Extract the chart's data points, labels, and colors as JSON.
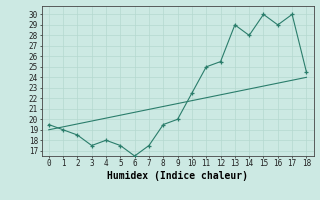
{
  "x": [
    0,
    1,
    2,
    3,
    4,
    5,
    6,
    7,
    8,
    9,
    10,
    11,
    12,
    13,
    14,
    15,
    16,
    17,
    18
  ],
  "y_data": [
    19.5,
    19.0,
    18.5,
    17.5,
    18.0,
    17.5,
    16.5,
    17.5,
    19.5,
    20.0,
    22.5,
    25.0,
    25.5,
    29.0,
    28.0,
    30.0,
    29.0,
    30.0,
    24.5
  ],
  "trend_x": [
    0,
    18
  ],
  "trend_y": [
    19.0,
    24.0
  ],
  "xlabel": "Humidex (Indice chaleur)",
  "ylabel_ticks": [
    17,
    18,
    19,
    20,
    21,
    22,
    23,
    24,
    25,
    26,
    27,
    28,
    29,
    30
  ],
  "xlim": [
    -0.5,
    18.5
  ],
  "ylim": [
    16.5,
    30.8
  ],
  "line_color": "#2a7d6b",
  "bg_color": "#cce9e3",
  "grid_color": "#b5d8d0",
  "tick_label_size": 5.5,
  "xlabel_size": 7.0
}
